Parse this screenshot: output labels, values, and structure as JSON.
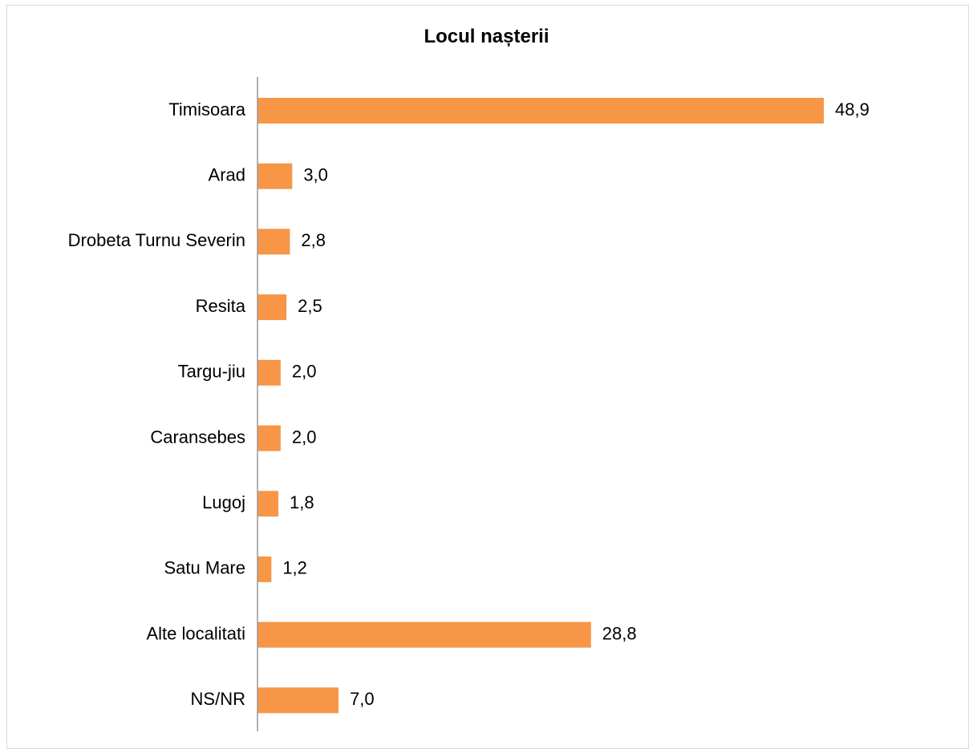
{
  "chart_data": {
    "type": "bar",
    "orientation": "horizontal",
    "title": "Locul nașterii",
    "categories": [
      "Timisoara",
      "Arad",
      "Drobeta Turnu Severin",
      "Resita",
      "Targu-jiu",
      "Caransebes",
      "Lugoj",
      "Satu Mare",
      "Alte localitati",
      "NS/NR"
    ],
    "values": [
      48.9,
      3.0,
      2.8,
      2.5,
      2.0,
      2.0,
      1.8,
      1.2,
      28.8,
      7.0
    ],
    "value_labels": [
      "48,9",
      "3,0",
      "2,8",
      "2,5",
      "2,0",
      "2,0",
      "1,8",
      "1,2",
      "28,8",
      "7,0"
    ],
    "xlim": [
      0,
      50
    ],
    "xlabel": "",
    "ylabel": "",
    "grid": false,
    "legend": "none",
    "bar_color": "#F79646",
    "axis_color": "#999999"
  }
}
